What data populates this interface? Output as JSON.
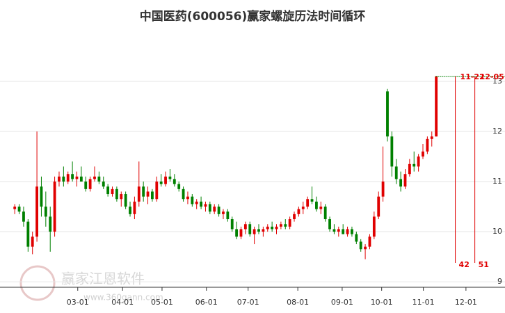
{
  "chart_data": {
    "type": "candlestick",
    "title": "中国医药(600056)赢家螺旋历法时间循环",
    "watermark": [
      "赢家江恩软件",
      "www.360gann.com"
    ],
    "up_color": "#e00000",
    "down_color": "#008000",
    "xlim": [
      0,
      111
    ],
    "ylim": [
      8.89,
      13.93
    ],
    "yticks": [
      9,
      10,
      11,
      12,
      13
    ],
    "grid": true,
    "xticks": [
      {
        "value": 14.7,
        "label": "03-01"
      },
      {
        "value": 24.8,
        "label": "04-01"
      },
      {
        "value": 33.7,
        "label": "05-01"
      },
      {
        "value": 43.7,
        "label": "06-01"
      },
      {
        "value": 53.1,
        "label": "07-01"
      },
      {
        "value": 64.3,
        "label": "08-01"
      },
      {
        "value": 74.3,
        "label": "09-01"
      },
      {
        "value": 83.2,
        "label": "10-01"
      },
      {
        "value": 92.6,
        "label": "11-01"
      },
      {
        "value": 102.2,
        "label": "12-01"
      }
    ],
    "level": 13.1,
    "cycles": [
      {
        "x": 99.8,
        "date": "11-22",
        "count": 42
      },
      {
        "x": 104.2,
        "date": "12-05",
        "count": 51
      }
    ],
    "ohlc": [
      [
        10.45,
        10.55,
        10.35,
        10.5
      ],
      [
        10.5,
        10.55,
        10.35,
        10.4
      ],
      [
        10.4,
        10.5,
        10.1,
        10.2
      ],
      [
        10.2,
        10.25,
        9.6,
        9.7
      ],
      [
        9.7,
        10.0,
        9.55,
        9.9
      ],
      [
        9.9,
        12.0,
        9.8,
        10.9
      ],
      [
        10.9,
        11.1,
        10.3,
        10.5
      ],
      [
        10.5,
        10.8,
        10.1,
        10.3
      ],
      [
        10.3,
        10.5,
        9.6,
        10.0
      ],
      [
        10.0,
        11.1,
        9.9,
        11.0
      ],
      [
        11.0,
        11.2,
        10.9,
        11.1
      ],
      [
        11.1,
        11.3,
        10.9,
        11.0
      ],
      [
        11.0,
        11.2,
        10.95,
        11.15
      ],
      [
        11.15,
        11.4,
        11.0,
        11.05
      ],
      [
        11.05,
        11.2,
        10.9,
        11.1
      ],
      [
        11.1,
        11.3,
        11.0,
        11.0
      ],
      [
        11.0,
        11.1,
        10.8,
        10.85
      ],
      [
        10.85,
        11.1,
        10.8,
        11.05
      ],
      [
        11.05,
        11.3,
        11.0,
        11.1
      ],
      [
        11.1,
        11.2,
        10.95,
        11.0
      ],
      [
        11.0,
        11.1,
        10.85,
        10.9
      ],
      [
        10.9,
        10.95,
        10.7,
        10.75
      ],
      [
        10.75,
        10.9,
        10.7,
        10.85
      ],
      [
        10.85,
        10.9,
        10.6,
        10.65
      ],
      [
        10.65,
        10.8,
        10.5,
        10.75
      ],
      [
        10.75,
        10.8,
        10.45,
        10.5
      ],
      [
        10.5,
        10.6,
        10.3,
        10.35
      ],
      [
        10.35,
        10.7,
        10.25,
        10.6
      ],
      [
        10.6,
        11.4,
        10.5,
        10.9
      ],
      [
        10.9,
        11.0,
        10.6,
        10.7
      ],
      [
        10.7,
        10.9,
        10.55,
        10.8
      ],
      [
        10.8,
        10.85,
        10.6,
        10.65
      ],
      [
        10.65,
        11.1,
        10.6,
        11.0
      ],
      [
        11.0,
        11.15,
        10.9,
        10.95
      ],
      [
        10.95,
        11.2,
        10.9,
        11.1
      ],
      [
        11.1,
        11.25,
        11.0,
        11.05
      ],
      [
        11.05,
        11.15,
        10.9,
        10.95
      ],
      [
        10.95,
        11.0,
        10.8,
        10.85
      ],
      [
        10.85,
        10.9,
        10.6,
        10.65
      ],
      [
        10.65,
        10.8,
        10.55,
        10.7
      ],
      [
        10.7,
        10.75,
        10.5,
        10.55
      ],
      [
        10.55,
        10.65,
        10.45,
        10.6
      ],
      [
        10.6,
        10.7,
        10.45,
        10.5
      ],
      [
        10.5,
        10.6,
        10.4,
        10.55
      ],
      [
        10.55,
        10.6,
        10.35,
        10.4
      ],
      [
        10.4,
        10.55,
        10.35,
        10.5
      ],
      [
        10.5,
        10.55,
        10.3,
        10.35
      ],
      [
        10.35,
        10.45,
        10.25,
        10.4
      ],
      [
        10.4,
        10.45,
        10.2,
        10.25
      ],
      [
        10.25,
        10.3,
        10.0,
        10.05
      ],
      [
        10.05,
        10.2,
        9.85,
        9.9
      ],
      [
        9.9,
        10.1,
        9.85,
        10.05
      ],
      [
        10.05,
        10.2,
        9.95,
        10.15
      ],
      [
        10.15,
        10.2,
        9.9,
        9.95
      ],
      [
        9.95,
        10.1,
        9.75,
        10.05
      ],
      [
        10.05,
        10.15,
        9.95,
        10.0
      ],
      [
        10.0,
        10.1,
        9.9,
        10.05
      ],
      [
        10.05,
        10.15,
        10.0,
        10.1
      ],
      [
        10.1,
        10.2,
        10.0,
        10.05
      ],
      [
        10.05,
        10.15,
        9.95,
        10.1
      ],
      [
        10.1,
        10.2,
        10.05,
        10.15
      ],
      [
        10.15,
        10.25,
        10.05,
        10.1
      ],
      [
        10.1,
        10.3,
        10.05,
        10.25
      ],
      [
        10.25,
        10.4,
        10.2,
        10.35
      ],
      [
        10.35,
        10.5,
        10.3,
        10.45
      ],
      [
        10.45,
        10.6,
        10.35,
        10.5
      ],
      [
        10.5,
        10.7,
        10.45,
        10.65
      ],
      [
        10.65,
        10.9,
        10.55,
        10.6
      ],
      [
        10.6,
        10.7,
        10.4,
        10.45
      ],
      [
        10.45,
        10.6,
        10.35,
        10.5
      ],
      [
        10.5,
        10.55,
        10.2,
        10.25
      ],
      [
        10.25,
        10.3,
        10.0,
        10.05
      ],
      [
        10.05,
        10.15,
        9.95,
        10.0
      ],
      [
        10.0,
        10.1,
        9.9,
        10.05
      ],
      [
        10.05,
        10.15,
        9.95,
        9.95
      ],
      [
        9.95,
        10.1,
        9.9,
        10.05
      ],
      [
        10.05,
        10.1,
        9.9,
        9.95
      ],
      [
        9.95,
        10.0,
        9.75,
        9.8
      ],
      [
        9.8,
        9.85,
        9.6,
        9.65
      ],
      [
        9.65,
        9.75,
        9.45,
        9.7
      ],
      [
        9.7,
        9.95,
        9.65,
        9.9
      ],
      [
        9.9,
        10.4,
        9.85,
        10.3
      ],
      [
        10.3,
        10.8,
        10.25,
        10.7
      ],
      [
        10.7,
        11.7,
        10.6,
        11.0
      ],
      [
        12.8,
        12.85,
        11.8,
        11.9
      ],
      [
        11.9,
        12.0,
        11.1,
        11.3
      ],
      [
        11.3,
        11.45,
        10.95,
        11.05
      ],
      [
        11.05,
        11.2,
        10.8,
        10.9
      ],
      [
        10.9,
        11.25,
        10.85,
        11.15
      ],
      [
        11.15,
        11.45,
        11.1,
        11.35
      ],
      [
        11.35,
        11.6,
        11.2,
        11.3
      ],
      [
        11.3,
        11.55,
        11.2,
        11.5
      ],
      [
        11.5,
        11.75,
        11.45,
        11.6
      ],
      [
        11.6,
        11.9,
        11.55,
        11.85
      ],
      [
        11.85,
        12.0,
        11.7,
        11.9
      ],
      [
        11.9,
        13.1,
        11.9,
        13.1
      ]
    ]
  }
}
